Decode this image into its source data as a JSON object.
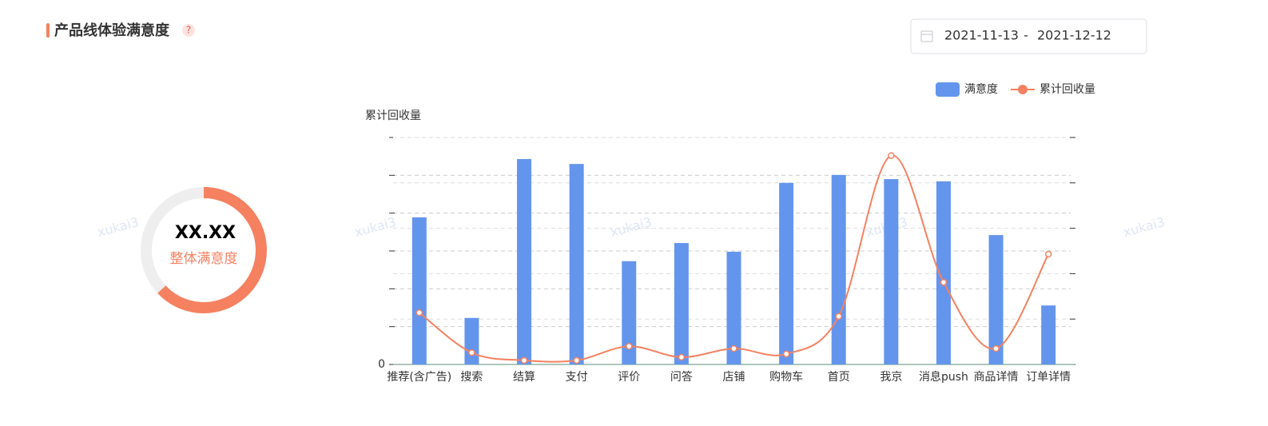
{
  "header": {
    "title": "产品线体验满意度",
    "help": "?"
  },
  "date_range": {
    "start": "2021-11-13",
    "separator": "-",
    "end": "2021-12-12"
  },
  "overall": {
    "value": "XX.XX",
    "label": "整体满意度"
  },
  "watermark": "xukai3",
  "chart_data": {
    "type": "bar",
    "y_axis_title": "累计回收量",
    "categories": [
      "推荐(含广告)",
      "搜索",
      "结算",
      "支付",
      "评价",
      "问答",
      "店铺",
      "购物车",
      "首页",
      "我京",
      "消息push",
      "商品详情",
      "订单详情"
    ],
    "series": [
      {
        "name": "满意度",
        "type": "bar",
        "color": "#6495ed",
        "values": [
          3.89,
          1.23,
          5.43,
          5.3,
          2.73,
          3.21,
          2.98,
          4.8,
          5.01,
          4.9,
          4.84,
          3.42,
          1.56
        ]
      },
      {
        "name": "累计回收量",
        "type": "line",
        "axis": "y2",
        "color": "#f58160",
        "values": [
          1.14,
          0.26,
          0.09,
          0.09,
          0.4,
          0.16,
          0.35,
          0.23,
          1.06,
          4.6,
          1.81,
          0.35,
          2.43
        ]
      }
    ],
    "ylim": [
      0,
      6
    ],
    "yticks": [
      0,
      {
        "value": 1,
        "label": null
      },
      {
        "value": 2,
        "label": null
      },
      {
        "value": 3,
        "label": null
      },
      {
        "value": 4,
        "label": null
      },
      {
        "value": 5,
        "label": null
      },
      {
        "value": 6,
        "label": null
      }
    ],
    "y2lim": [
      0,
      5
    ],
    "y2ticks": [
      {
        "value": 0,
        "label": null
      },
      {
        "value": 1,
        "label": null
      },
      {
        "value": 2,
        "label": null
      },
      {
        "value": 3,
        "label": null
      },
      {
        "value": 4,
        "label": null
      },
      {
        "value": 5,
        "label": null
      }
    ],
    "grid": true,
    "legend": "top-right"
  }
}
